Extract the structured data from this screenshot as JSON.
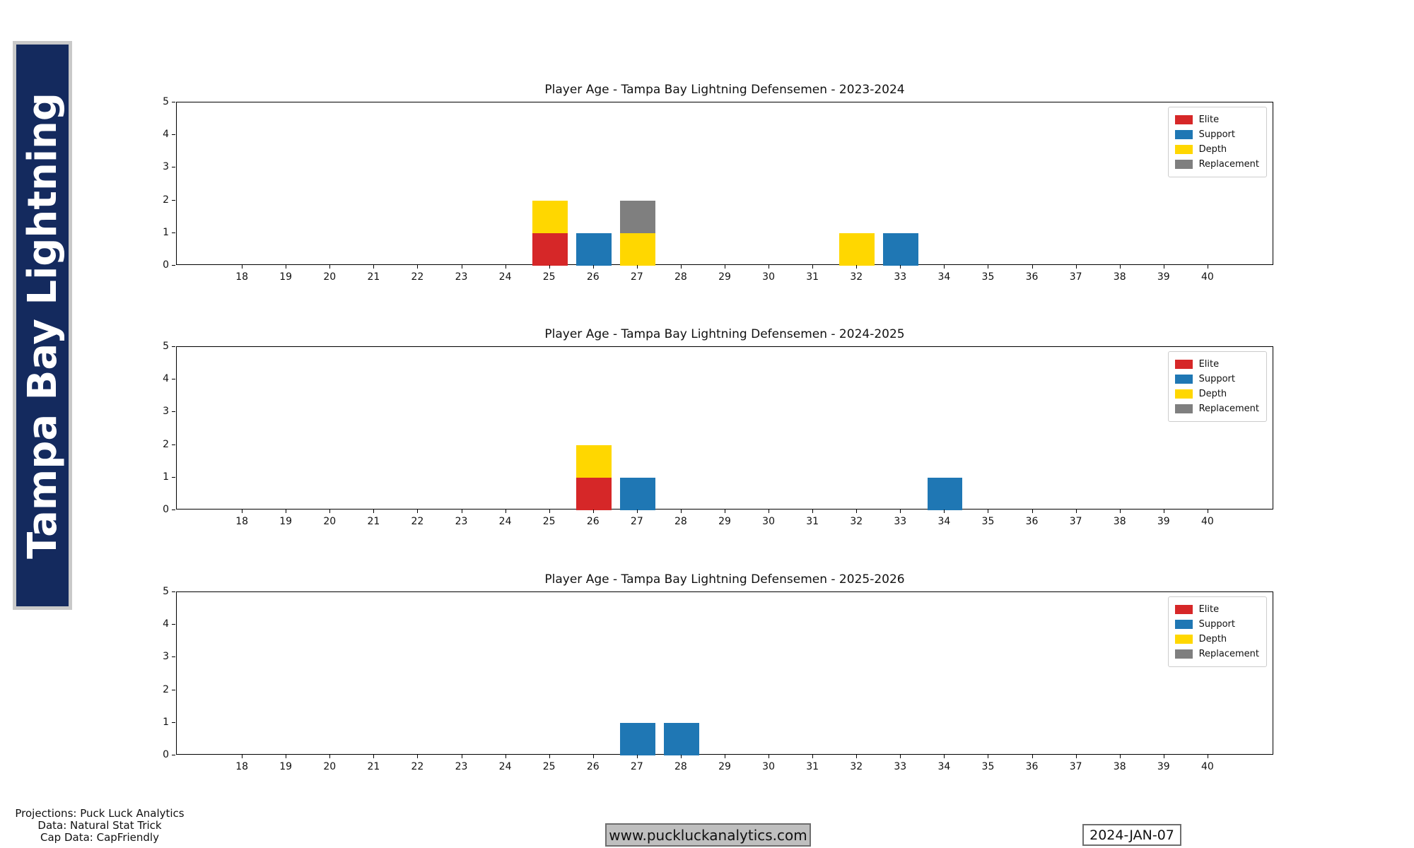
{
  "banner": {
    "text": "Tampa Bay Lightning",
    "bg_color": "#142a5e",
    "border_color": "#c9c9c9",
    "text_color": "#ffffff"
  },
  "categories": [
    {
      "name": "Elite",
      "color": "#d62728"
    },
    {
      "name": "Support",
      "color": "#1f77b4"
    },
    {
      "name": "Depth",
      "color": "#ffd700"
    },
    {
      "name": "Replacement",
      "color": "#7f7f7f"
    }
  ],
  "chart_data": [
    {
      "type": "bar",
      "stacked": true,
      "title": "Player Age - Tampa Bay Lightning Defensemen - 2023-2024",
      "xlabel": "",
      "ylabel": "",
      "xlim": [
        16.5,
        41.5
      ],
      "ylim": [
        0,
        5
      ],
      "x_ticks": [
        18,
        19,
        20,
        21,
        22,
        23,
        24,
        25,
        26,
        27,
        28,
        29,
        30,
        31,
        32,
        33,
        34,
        35,
        36,
        37,
        38,
        39,
        40
      ],
      "y_ticks": [
        0,
        1,
        2,
        3,
        4,
        5
      ],
      "bar_width": 0.8,
      "grid": false,
      "legend_position": "upper right",
      "legend_entries": [
        "Elite",
        "Support",
        "Depth",
        "Replacement"
      ],
      "bars": [
        {
          "age": 25,
          "segments": [
            {
              "category": "Elite",
              "value": 1
            },
            {
              "category": "Depth",
              "value": 1
            }
          ]
        },
        {
          "age": 26,
          "segments": [
            {
              "category": "Support",
              "value": 1
            }
          ]
        },
        {
          "age": 27,
          "segments": [
            {
              "category": "Depth",
              "value": 1
            },
            {
              "category": "Replacement",
              "value": 1
            }
          ]
        },
        {
          "age": 32,
          "segments": [
            {
              "category": "Depth",
              "value": 1
            }
          ]
        },
        {
          "age": 33,
          "segments": [
            {
              "category": "Support",
              "value": 1
            }
          ]
        }
      ]
    },
    {
      "type": "bar",
      "stacked": true,
      "title": "Player Age - Tampa Bay Lightning Defensemen - 2024-2025",
      "xlabel": "",
      "ylabel": "",
      "xlim": [
        16.5,
        41.5
      ],
      "ylim": [
        0,
        5
      ],
      "x_ticks": [
        18,
        19,
        20,
        21,
        22,
        23,
        24,
        25,
        26,
        27,
        28,
        29,
        30,
        31,
        32,
        33,
        34,
        35,
        36,
        37,
        38,
        39,
        40
      ],
      "y_ticks": [
        0,
        1,
        2,
        3,
        4,
        5
      ],
      "bar_width": 0.8,
      "grid": false,
      "legend_position": "upper right",
      "legend_entries": [
        "Elite",
        "Support",
        "Depth",
        "Replacement"
      ],
      "bars": [
        {
          "age": 26,
          "segments": [
            {
              "category": "Elite",
              "value": 1
            },
            {
              "category": "Depth",
              "value": 1
            }
          ]
        },
        {
          "age": 27,
          "segments": [
            {
              "category": "Support",
              "value": 1
            }
          ]
        },
        {
          "age": 34,
          "segments": [
            {
              "category": "Support",
              "value": 1
            }
          ]
        }
      ]
    },
    {
      "type": "bar",
      "stacked": true,
      "title": "Player Age - Tampa Bay Lightning Defensemen - 2025-2026",
      "xlabel": "",
      "ylabel": "",
      "xlim": [
        16.5,
        41.5
      ],
      "ylim": [
        0,
        5
      ],
      "x_ticks": [
        18,
        19,
        20,
        21,
        22,
        23,
        24,
        25,
        26,
        27,
        28,
        29,
        30,
        31,
        32,
        33,
        34,
        35,
        36,
        37,
        38,
        39,
        40
      ],
      "y_ticks": [
        0,
        1,
        2,
        3,
        4,
        5
      ],
      "bar_width": 0.8,
      "grid": false,
      "legend_position": "upper right",
      "legend_entries": [
        "Elite",
        "Support",
        "Depth",
        "Replacement"
      ],
      "bars": [
        {
          "age": 27,
          "segments": [
            {
              "category": "Support",
              "value": 1
            }
          ]
        },
        {
          "age": 28,
          "segments": [
            {
              "category": "Support",
              "value": 1
            }
          ]
        }
      ]
    }
  ],
  "layout": {
    "plot_tops": [
      144,
      490,
      837
    ]
  },
  "footer": {
    "credit_line1": "Projections: Puck Luck Analytics",
    "credit_line2": "Data: Natural Stat Trick",
    "credit_line3": "Cap Data: CapFriendly",
    "url": "www.puckluckanalytics.com",
    "date": "2024-JAN-07"
  }
}
